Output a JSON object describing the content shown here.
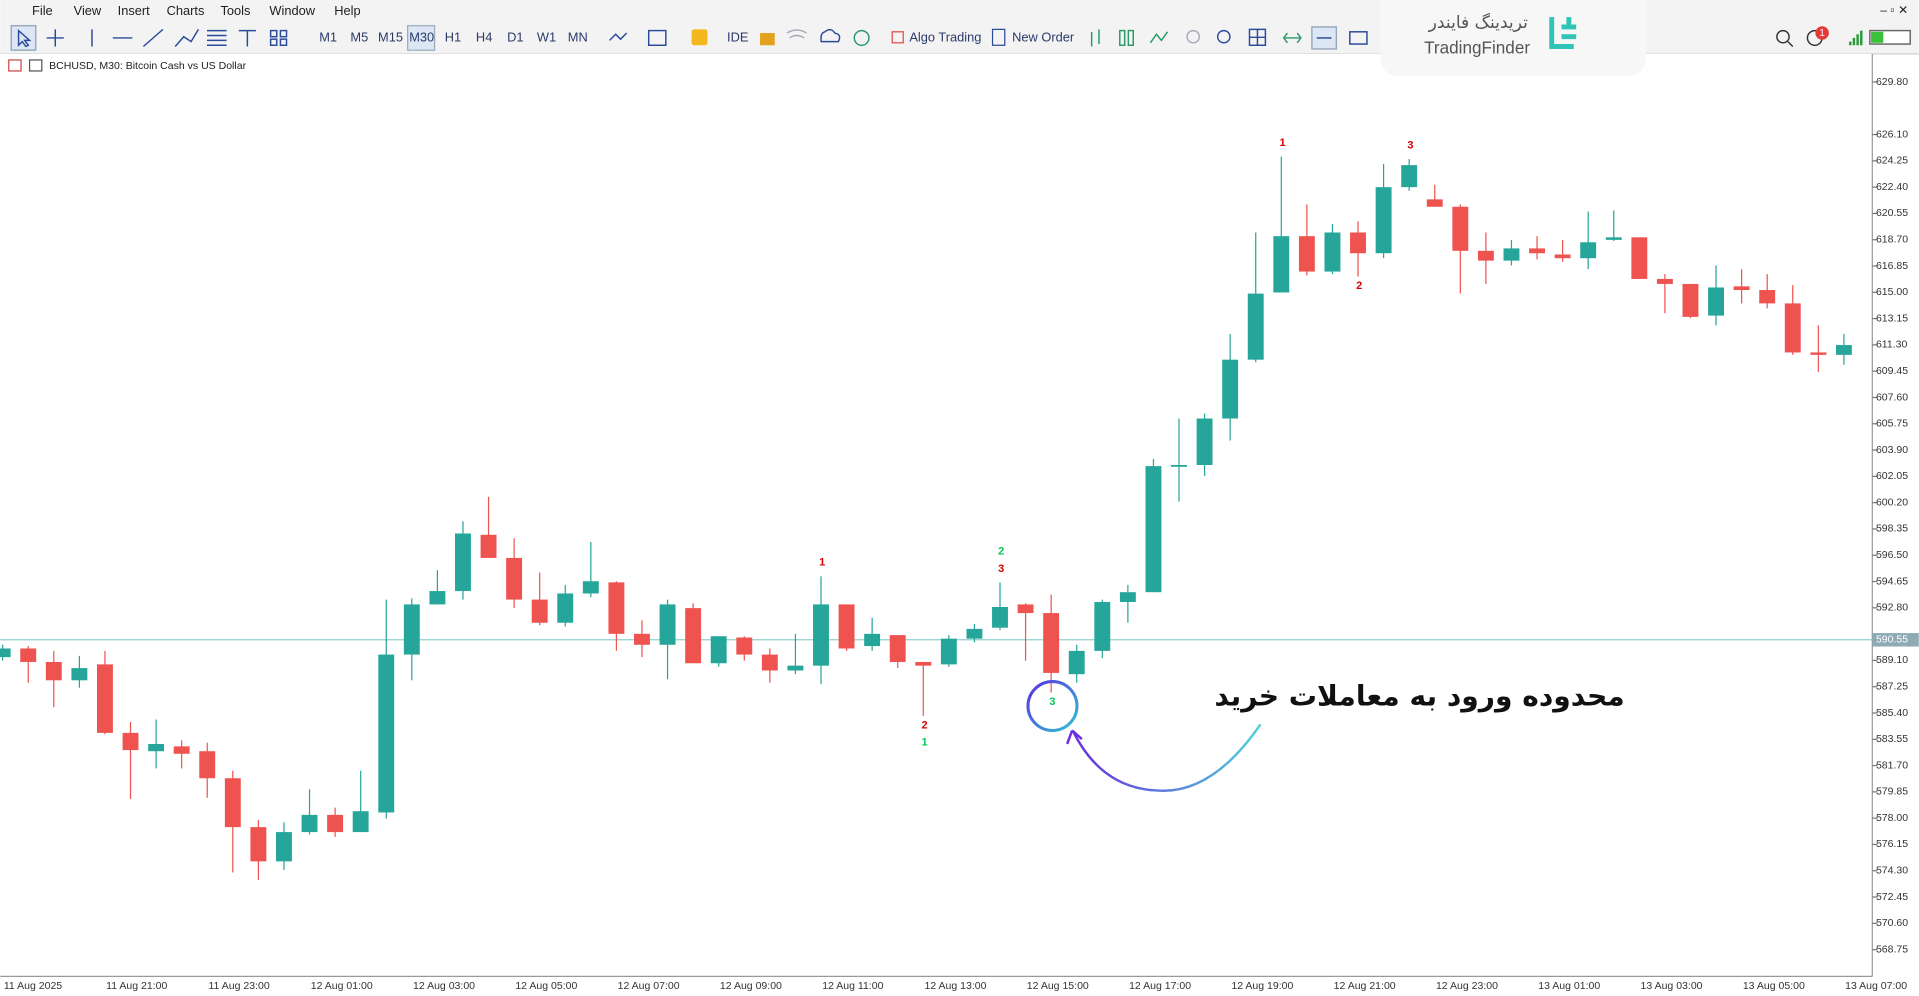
{
  "menu": [
    "File",
    "View",
    "Insert",
    "Charts",
    "Tools",
    "Window",
    "Help"
  ],
  "toolbar": {
    "timeframes": [
      "M1",
      "M5",
      "M15",
      "M30",
      "H1",
      "H4",
      "D1",
      "W1",
      "MN"
    ],
    "ide": "IDE",
    "algo_trading": "Algo Trading",
    "new_order": "New Order"
  },
  "logo": {
    "fa": "تریدینگ فایندر",
    "en": "TradingFinder"
  },
  "notifications": 1,
  "chart_data": {
    "type": "candlestick",
    "title": "BCHUSD, M30:  Bitcoin Cash vs US Dollar",
    "annotation": "محدوده ورود به معاملات خرید",
    "up_color": "#26a69a",
    "down_color": "#ef5350",
    "price_line_color": "#8fd1cd",
    "categories": [
      "11 Aug 2025",
      null,
      null,
      null,
      "11 Aug 21:00",
      null,
      null,
      null,
      "11 Aug 23:00",
      null,
      null,
      null,
      "12 Aug 01:00",
      null,
      null,
      null,
      "12 Aug 03:00",
      null,
      null,
      null,
      "12 Aug 05:00",
      null,
      null,
      null,
      "12 Aug 07:00",
      null,
      null,
      null,
      "12 Aug 09:00",
      null,
      null,
      null,
      "12 Aug 11:00",
      null,
      null,
      null,
      "12 Aug 13:00",
      null,
      null,
      null,
      "12 Aug 15:00",
      null,
      null,
      null,
      "12 Aug 17:00",
      null,
      null,
      null,
      "12 Aug 19:00",
      null,
      null,
      null,
      "12 Aug 21:00",
      null,
      null,
      null,
      "12 Aug 23:00",
      null,
      null,
      null,
      "13 Aug 01:00",
      null,
      null,
      null,
      "13 Aug 03:00",
      null,
      null,
      null,
      "13 Aug 05:00",
      null,
      null,
      null,
      "13 Aug 07:00"
    ],
    "open": [
      589.33,
      589.94,
      588.99,
      587.7,
      588.82,
      584.0,
      582.71,
      583.05,
      582.71,
      580.81,
      577.37,
      574.96,
      577.02,
      578.23,
      577.02,
      578.4,
      589.51,
      593.04,
      593.98,
      597.94,
      596.31,
      593.38,
      591.75,
      593.81,
      594.59,
      590.97,
      590.2,
      592.78,
      588.9,
      590.71,
      589.51,
      588.39,
      588.73,
      593.04,
      590.11,
      590.88,
      588.99,
      588.82,
      590.63,
      591.4,
      593.04,
      592.43,
      588.13,
      589.77,
      593.21,
      593.9,
      602.77,
      602.85,
      606.12,
      610.26,
      614.99,
      618.95,
      616.46,
      619.21,
      617.75,
      622.4,
      621.54,
      621.02,
      617.92,
      617.23,
      618.09,
      617.66,
      617.4,
      618.69,
      618.87,
      615.94,
      615.59,
      613.36,
      615.42,
      615.16,
      614.22,
      610.77,
      610.6
    ],
    "high": [
      590.2,
      590.11,
      589.77,
      589.42,
      589.77,
      584.77,
      584.94,
      583.48,
      583.31,
      581.33,
      577.88,
      577.71,
      580.04,
      578.74,
      581.33,
      593.38,
      593.47,
      595.45,
      598.89,
      600.61,
      597.69,
      595.28,
      594.41,
      597.43,
      594.67,
      591.92,
      593.38,
      593.12,
      590.8,
      590.8,
      589.94,
      590.97,
      595.02,
      593.04,
      592.09,
      590.88,
      588.99,
      590.88,
      591.66,
      594.59,
      593.12,
      593.73,
      590.2,
      593.38,
      594.41,
      603.28,
      606.12,
      606.47,
      612.07,
      619.21,
      624.55,
      621.19,
      619.81,
      619.99,
      624.03,
      624.38,
      622.57,
      621.19,
      619.21,
      618.69,
      618.95,
      618.69,
      620.68,
      620.76,
      618.87,
      616.28,
      615.59,
      616.89,
      616.63,
      616.28,
      615.51,
      612.67,
      612.07
    ],
    "low": [
      589.08,
      587.53,
      585.8,
      587.18,
      583.91,
      579.35,
      581.5,
      581.5,
      579.43,
      574.18,
      573.66,
      574.35,
      576.85,
      576.68,
      577.02,
      577.97,
      587.7,
      593.04,
      593.38,
      596.31,
      592.78,
      591.57,
      591.49,
      593.55,
      589.77,
      589.33,
      587.78,
      588.9,
      588.65,
      589.08,
      587.53,
      588.13,
      587.44,
      589.77,
      589.77,
      588.56,
      585.2,
      588.65,
      590.37,
      591.23,
      589.08,
      586.84,
      587.53,
      589.25,
      591.75,
      593.9,
      600.27,
      602.08,
      604.57,
      610.08,
      614.99,
      616.2,
      616.28,
      616.11,
      617.4,
      622.14,
      621.02,
      614.91,
      615.59,
      616.89,
      617.32,
      617.15,
      616.63,
      618.61,
      615.94,
      613.53,
      613.18,
      612.67,
      614.22,
      613.87,
      610.6,
      609.4,
      609.91
    ],
    "close": [
      589.94,
      588.99,
      587.7,
      588.56,
      584.0,
      582.79,
      583.22,
      582.53,
      580.81,
      577.37,
      574.96,
      577.02,
      578.23,
      577.02,
      578.49,
      589.51,
      593.04,
      593.98,
      598.03,
      596.31,
      593.38,
      591.75,
      593.81,
      594.67,
      590.97,
      590.2,
      593.04,
      588.9,
      590.8,
      589.51,
      588.39,
      588.73,
      593.04,
      589.94,
      590.97,
      588.99,
      588.73,
      590.63,
      591.32,
      592.86,
      592.43,
      588.22,
      589.77,
      593.21,
      593.9,
      602.77,
      602.85,
      606.12,
      610.26,
      614.91,
      618.95,
      616.46,
      619.21,
      617.75,
      622.4,
      623.95,
      621.02,
      617.92,
      617.23,
      618.09,
      617.75,
      617.4,
      618.52,
      618.87,
      615.94,
      615.59,
      613.27,
      615.34,
      615.16,
      614.22,
      610.77,
      610.6,
      611.29
    ],
    "ylim": [
      566.95,
      631.78
    ],
    "yticks": [
      {
        "value": 629.8,
        "label": "629.80"
      },
      {
        "value": 626.1,
        "label": "626.10"
      },
      624.25,
      {
        "value": 622.4,
        "label": "622.40"
      },
      620.55,
      {
        "value": 618.7,
        "label": "618.70"
      },
      616.85,
      {
        "value": 615,
        "label": "615.00"
      },
      613.15,
      {
        "value": 611.3,
        "label": "611.30"
      },
      609.45,
      {
        "value": 607.6,
        "label": "607.60"
      },
      605.75,
      {
        "value": 603.9,
        "label": "603.90"
      },
      602.05,
      {
        "value": 600.2,
        "label": "600.20"
      },
      598.35,
      {
        "value": 596.5,
        "label": "596.50"
      },
      594.65,
      {
        "value": 592.8,
        "label": "592.80"
      },
      {
        "value": 589.1,
        "label": "589.10"
      },
      587.25,
      {
        "value": 585.4,
        "label": "585.40"
      },
      583.55,
      {
        "value": 581.7,
        "label": "581.70"
      },
      579.85,
      {
        "value": 578,
        "label": "578.00"
      },
      576.15,
      {
        "value": 574.3,
        "label": "574.30"
      },
      572.45,
      {
        "value": 570.6,
        "label": "570.60"
      },
      568.75
    ],
    "current_price": 590.55,
    "signals": [
      {
        "label": "1",
        "color": "#d50000",
        "candle": 32,
        "side": "high"
      },
      {
        "label": "3",
        "color": "#d50000",
        "candle": 39,
        "side": "high"
      },
      {
        "label": "2",
        "color": "#00c853",
        "candle": 39,
        "side": "high"
      },
      {
        "label": "2",
        "color": "#d50000",
        "candle": 36,
        "side": "low"
      },
      {
        "label": "1",
        "color": "#00c853",
        "candle": 36,
        "side": "low"
      },
      {
        "label": "3",
        "color": "#00c853",
        "candle": 41,
        "side": "low"
      },
      {
        "label": "1",
        "color": "#d50000",
        "candle": 50,
        "side": "high"
      },
      {
        "label": "2",
        "color": "#d50000",
        "candle": 53,
        "side": "low"
      },
      {
        "label": "3",
        "color": "#d50000",
        "candle": 55,
        "side": "high"
      }
    ]
  }
}
